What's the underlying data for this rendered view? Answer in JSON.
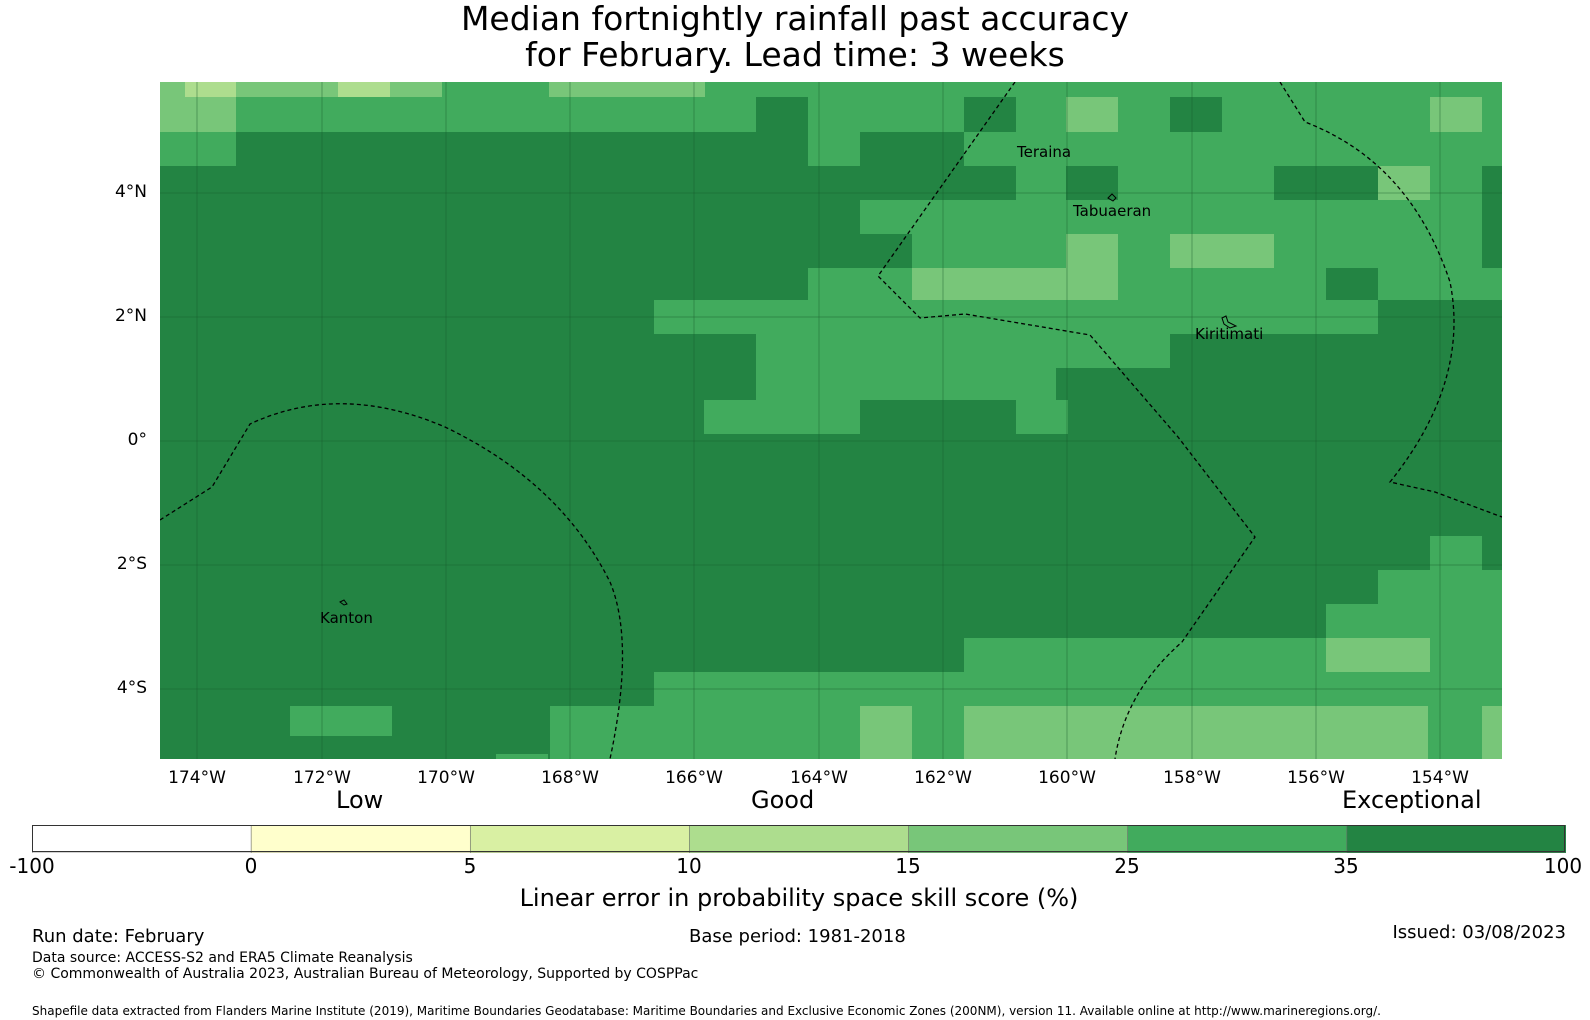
{
  "title": {
    "line1": "Median fortnightly rainfall past accuracy",
    "line2": "for February. Lead time: 3 weeks"
  },
  "map": {
    "lat_labels": [
      "4°N",
      "2°N",
      "0°",
      "2°S",
      "4°S"
    ],
    "lon_labels": [
      "174°W",
      "172°W",
      "170°W",
      "168°W",
      "166°W",
      "164°W",
      "162°W",
      "160°W",
      "158°W",
      "156°W",
      "154°W"
    ],
    "places": [
      {
        "name": "Teraina",
        "lon": -160.5,
        "lat": 4.7
      },
      {
        "name": "Tabuaeran",
        "lon": -159.6,
        "lat": 3.8
      },
      {
        "name": "Kiritimati",
        "lon": -157.6,
        "lat": 1.6
      },
      {
        "name": "Kanton",
        "lon": -171.6,
        "lat": -2.8
      }
    ]
  },
  "colorbar": {
    "category_labels": [
      "Low",
      "Good",
      "Exceptional"
    ],
    "ticks": [
      "-100",
      "0",
      "5",
      "10",
      "15",
      "25",
      "35",
      "100"
    ],
    "colors": [
      "#ffffff",
      "#ffffcc",
      "#d9f0a3",
      "#addd8e",
      "#78c679",
      "#41ab5d",
      "#238443"
    ],
    "label": "Linear error in probability space skill score (%)"
  },
  "footer": {
    "run_date": "Run date: February",
    "base_period": "Base period: 1981-2018",
    "issued": "Issued: 03/08/2023",
    "data_source": "Data source: ACCESS-S2 and ERA5 Climate Reanalysis",
    "copyright": "© Commonwealth of Australia 2023, Australian Bureau of Meteorology, Supported by COSPPac",
    "shapefile": "Shapefile data extracted from Flanders Marine Institute (2019), Maritime Boundaries Geodatabase: Maritime Boundaries and Exclusive Economic Zones (200NM), version 11. Available online at http://www.marineregions.org/."
  }
}
